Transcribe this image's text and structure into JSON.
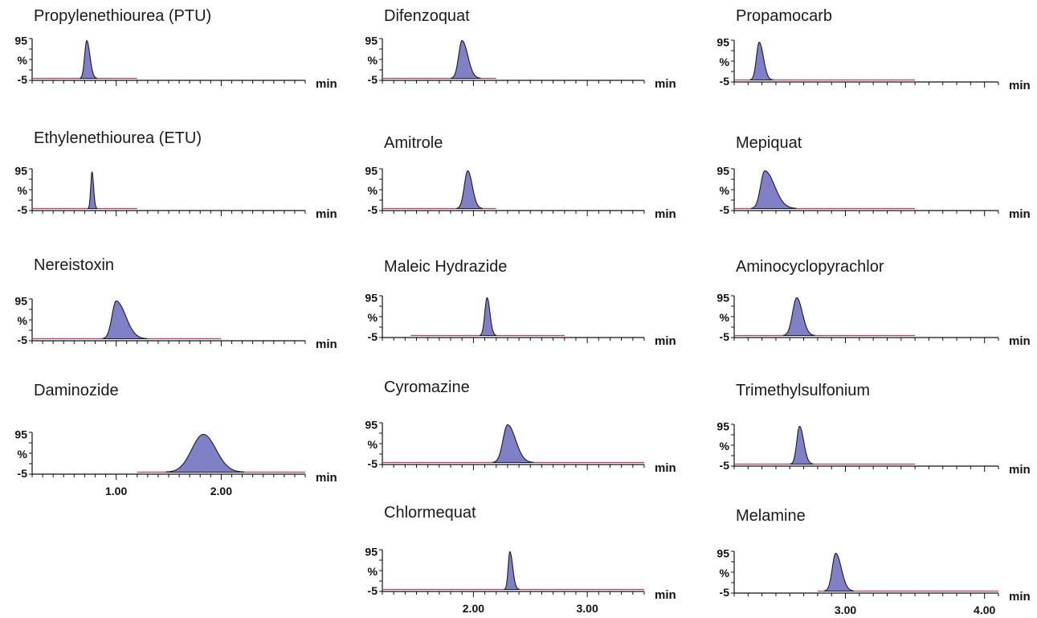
{
  "colors": {
    "baseline": "#b0416a",
    "peak_fill": "#7f80c6",
    "peak_stroke": "#1a1a2e",
    "axis": "#111111"
  },
  "y_tick_labels": [
    "95",
    "%",
    "-5"
  ],
  "x_unit": "min",
  "chart_data": [
    {
      "type": "area",
      "title": "Propylenethiourea (PTU)",
      "x_range": [
        0.2,
        2.8
      ],
      "ylim": [
        -5,
        100
      ],
      "trace": [
        0.2,
        1.2
      ],
      "peaks": [
        {
          "rt": 0.72,
          "height": 95,
          "width_left": 0.02,
          "width_right": 0.03
        }
      ],
      "x_ticks": []
    },
    {
      "type": "area",
      "title": "Ethylenethiourea (ETU)",
      "x_range": [
        0.2,
        2.8
      ],
      "ylim": [
        -5,
        100
      ],
      "trace": [
        0.2,
        1.2
      ],
      "peaks": [
        {
          "rt": 0.77,
          "height": 92,
          "width_left": 0.012,
          "width_right": 0.015
        }
      ],
      "x_ticks": []
    },
    {
      "type": "area",
      "title": "Nereistoxin",
      "x_range": [
        0.2,
        2.8
      ],
      "ylim": [
        -5,
        100
      ],
      "trace": [
        0.2,
        2.0
      ],
      "peaks": [
        {
          "rt": 1.0,
          "height": 95,
          "width_left": 0.04,
          "width_right": 0.09
        }
      ],
      "x_ticks": []
    },
    {
      "type": "area",
      "title": "Daminozide",
      "x_range": [
        0.2,
        2.8
      ],
      "ylim": [
        -5,
        100
      ],
      "trace": [
        1.2,
        2.8
      ],
      "peaks": [
        {
          "rt": 1.83,
          "height": 95,
          "width_left": 0.11,
          "width_right": 0.12
        }
      ],
      "x_ticks": [
        "1.00",
        "2.00"
      ],
      "x_tick_values": [
        1.0,
        2.0
      ]
    },
    {
      "type": "area",
      "title": "Difenzoquat",
      "x_range": [
        1.2,
        3.5
      ],
      "ylim": [
        -5,
        100
      ],
      "trace": [
        1.2,
        2.2
      ],
      "peaks": [
        {
          "rt": 1.9,
          "height": 95,
          "width_left": 0.03,
          "width_right": 0.05
        }
      ],
      "x_ticks": []
    },
    {
      "type": "area",
      "title": "Amitrole",
      "x_range": [
        1.2,
        3.5
      ],
      "ylim": [
        -5,
        100
      ],
      "trace": [
        1.2,
        2.2
      ],
      "peaks": [
        {
          "rt": 1.95,
          "height": 95,
          "width_left": 0.03,
          "width_right": 0.04
        }
      ],
      "x_ticks": []
    },
    {
      "type": "area",
      "title": "Maleic Hydrazide",
      "x_range": [
        1.2,
        3.5
      ],
      "ylim": [
        -5,
        100
      ],
      "trace": [
        1.45,
        2.8
      ],
      "peaks": [
        {
          "rt": 2.12,
          "height": 95,
          "width_left": 0.02,
          "width_right": 0.025
        }
      ],
      "x_ticks": []
    },
    {
      "type": "area",
      "title": "Cyromazine",
      "x_range": [
        1.2,
        3.5
      ],
      "ylim": [
        -5,
        100
      ],
      "trace": [
        1.2,
        3.5
      ],
      "peaks": [
        {
          "rt": 2.3,
          "height": 95,
          "width_left": 0.04,
          "width_right": 0.07
        }
      ],
      "x_ticks": []
    },
    {
      "type": "area",
      "title": "Chlormequat",
      "x_range": [
        1.2,
        3.5
      ],
      "ylim": [
        -5,
        100
      ],
      "trace": [
        1.2,
        3.5
      ],
      "peaks": [
        {
          "rt": 2.32,
          "height": 95,
          "width_left": 0.015,
          "width_right": 0.025
        }
      ],
      "x_ticks": [
        "2.00",
        "3.00"
      ],
      "x_tick_values": [
        2.0,
        3.0
      ]
    },
    {
      "type": "area",
      "title": "Propamocarb",
      "x_range": [
        2.2,
        4.1
      ],
      "ylim": [
        -5,
        100
      ],
      "trace": [
        2.2,
        3.5
      ],
      "peaks": [
        {
          "rt": 2.38,
          "height": 95,
          "width_left": 0.02,
          "width_right": 0.03
        }
      ],
      "x_ticks": []
    },
    {
      "type": "area",
      "title": "Mepiquat",
      "x_range": [
        2.2,
        4.1
      ],
      "ylim": [
        -5,
        100
      ],
      "trace": [
        2.2,
        3.5
      ],
      "peaks": [
        {
          "rt": 2.42,
          "height": 95,
          "width_left": 0.03,
          "width_right": 0.07
        }
      ],
      "x_ticks": []
    },
    {
      "type": "area",
      "title": "Aminocyclopyrachlor",
      "x_range": [
        2.2,
        4.1
      ],
      "ylim": [
        -5,
        100
      ],
      "trace": [
        2.2,
        3.5
      ],
      "peaks": [
        {
          "rt": 2.65,
          "height": 95,
          "width_left": 0.03,
          "width_right": 0.04
        }
      ],
      "x_ticks": []
    },
    {
      "type": "area",
      "title": "Trimethylsulfonium",
      "x_range": [
        2.2,
        4.1
      ],
      "ylim": [
        -5,
        100
      ],
      "trace": [
        2.2,
        3.5
      ],
      "peaks": [
        {
          "rt": 2.67,
          "height": 95,
          "width_left": 0.02,
          "width_right": 0.03
        }
      ],
      "x_ticks": []
    },
    {
      "type": "area",
      "title": "Melamine",
      "x_range": [
        2.2,
        4.1
      ],
      "ylim": [
        -5,
        100
      ],
      "trace": [
        2.8,
        4.1
      ],
      "peaks": [
        {
          "rt": 2.93,
          "height": 95,
          "width_left": 0.025,
          "width_right": 0.04
        }
      ],
      "x_ticks": [
        "3.00",
        "4.00"
      ],
      "x_tick_values": [
        3.0,
        4.0
      ]
    }
  ]
}
